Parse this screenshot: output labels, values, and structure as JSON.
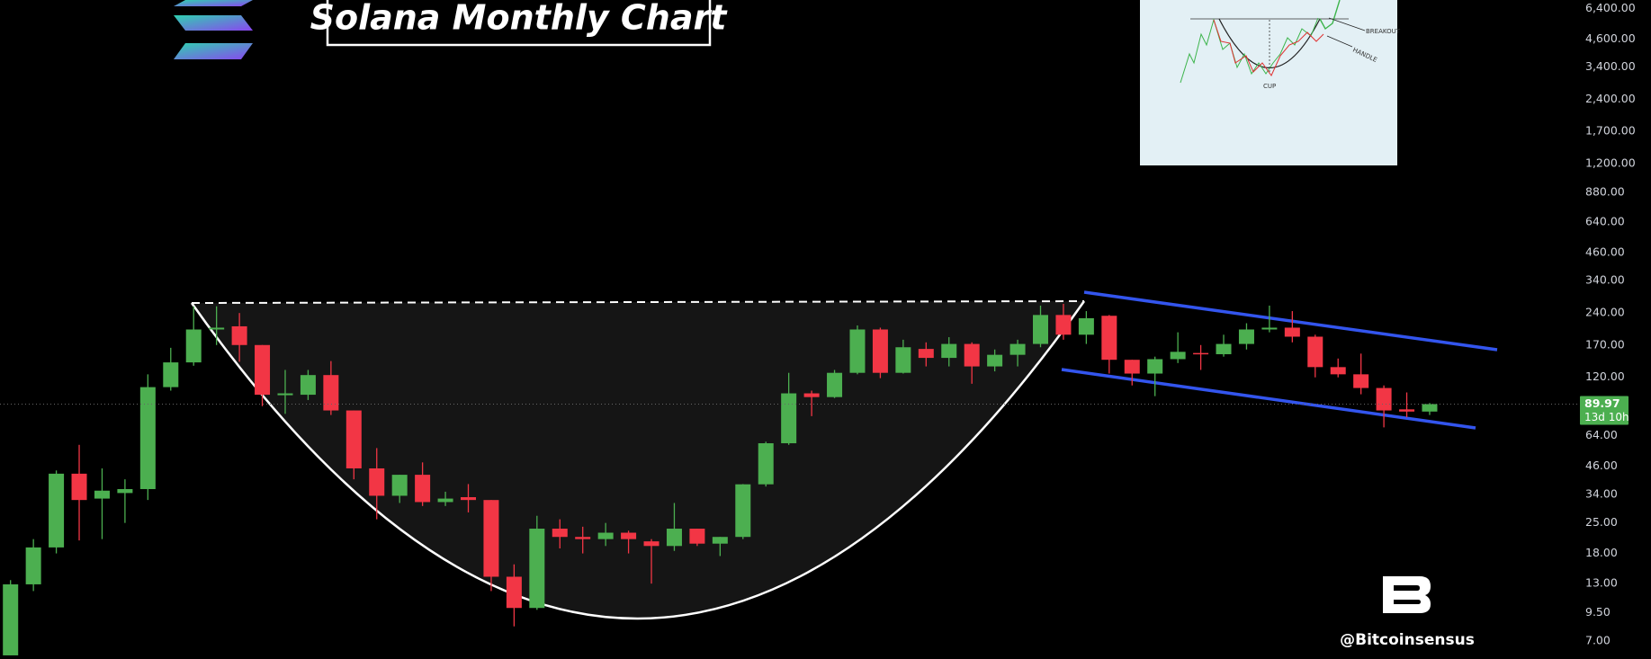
{
  "chart_data": {
    "type": "candlestick",
    "title": "Solana Monthly Chart",
    "log_scale": true,
    "ylim": [
      5.77,
      7000
    ],
    "yticks": [
      {
        "value": 6400,
        "label": "6,400.00"
      },
      {
        "value": 4600,
        "label": "4,600.00"
      },
      {
        "value": 3400,
        "label": "3,400.00"
      },
      {
        "value": 2400,
        "label": "2,400.00"
      },
      {
        "value": 1700,
        "label": "1,700.00"
      },
      {
        "value": 1200,
        "label": "1,200.00"
      },
      {
        "value": 880,
        "label": "880.00"
      },
      {
        "value": 640,
        "label": "640.00"
      },
      {
        "value": 460,
        "label": "460.00"
      },
      {
        "value": 340,
        "label": "340.00"
      },
      {
        "value": 240,
        "label": "240.00"
      },
      {
        "value": 170,
        "label": "170.00"
      },
      {
        "value": 120,
        "label": "120.00"
      },
      {
        "value": 64,
        "label": "64.00"
      },
      {
        "value": 46,
        "label": "46.00"
      },
      {
        "value": 34,
        "label": "34.00"
      },
      {
        "value": 25,
        "label": "25.00"
      },
      {
        "value": 18,
        "label": "18.00"
      },
      {
        "value": 13,
        "label": "13.00"
      },
      {
        "value": 9.5,
        "label": "9.50"
      },
      {
        "value": 7,
        "label": "7.00"
      }
    ],
    "up_color": "#4caf50",
    "down_color": "#f23645",
    "open": [
      6,
      12.9,
      19.2,
      42.5,
      32.5,
      34.5,
      36,
      108,
      141,
      201,
      208,
      170,
      99,
      99.5,
      123,
      84,
      45,
      33.5,
      42,
      31.3,
      33,
      32,
      14,
      10,
      23.5,
      21.5,
      21,
      22.5,
      20.5,
      19.5,
      23.5,
      20,
      21.5,
      37.9,
      59,
      101,
      97,
      126,
      201,
      126,
      163,
      148,
      172,
      135,
      153,
      172,
      235,
      190,
      233,
      145,
      125,
      146,
      156,
      154,
      172,
      201,
      205,
      186,
      134,
      124,
      107,
      85,
      83
    ],
    "high": [
      13.5,
      21,
      44,
      58,
      45,
      40,
      124,
      165,
      258,
      258,
      240,
      170,
      130,
      130,
      143,
      84,
      56,
      42,
      48,
      35,
      38,
      32,
      16,
      27,
      26,
      24,
      25,
      23,
      21,
      31,
      23.5,
      21.5,
      38,
      60,
      126,
      104,
      130,
      210,
      205,
      180,
      175,
      185,
      175,
      162,
      180,
      260,
      265,
      245,
      235,
      145,
      150,
      195,
      170,
      190,
      215,
      260,
      245,
      190,
      147,
      155,
      110,
      102,
      91
    ],
    "low": [
      6,
      12,
      18,
      20.7,
      21,
      25,
      32,
      104,
      136,
      170,
      142,
      88,
      81,
      94,
      80,
      40,
      26,
      31,
      30,
      30,
      28,
      12,
      8.2,
      9.8,
      19,
      18,
      19.5,
      18,
      13,
      18.5,
      19.5,
      17.5,
      21,
      37,
      58,
      79,
      96,
      124,
      119,
      125,
      135,
      135,
      112,
      128,
      135,
      166,
      180,
      172,
      125,
      110,
      98,
      140,
      130,
      150,
      162,
      195,
      175,
      120,
      120,
      100,
      70,
      78,
      80
    ],
    "close": [
      12.9,
      19.2,
      42.5,
      32,
      35.4,
      36,
      108,
      141,
      201,
      205,
      170,
      99.5,
      101,
      123,
      84,
      45,
      33.5,
      42,
      31.3,
      32.5,
      32,
      14,
      10,
      23.5,
      21.5,
      21,
      22.5,
      21,
      19.5,
      23.5,
      20,
      21.5,
      37.9,
      59,
      101,
      97,
      126,
      201,
      126,
      166,
      148,
      172,
      135,
      153,
      172,
      235,
      190,
      227,
      145,
      125,
      146,
      158,
      154,
      172,
      201,
      205,
      186,
      134,
      124,
      107,
      84,
      83,
      89.97
    ],
    "last_price": 89.97,
    "countdown": "13d 10h"
  },
  "watermark": "@Bitcoinsensus",
  "inset": {
    "labels": [
      "BREAKOUT",
      "HANDLE",
      "CUP"
    ]
  }
}
